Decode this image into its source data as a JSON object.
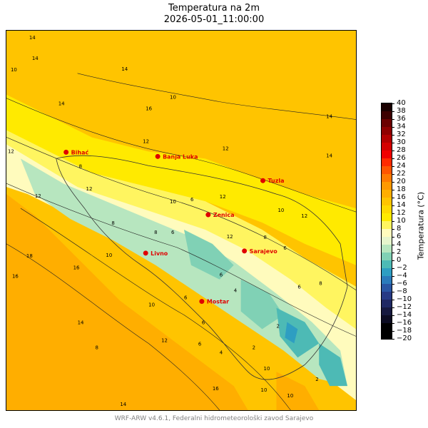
{
  "title": "Temperatura na 2m",
  "subtitle": "2026-05-01_11:00:00",
  "footer": "WRF-ARW v4.6.1, Federalni hidrometeorološki zavod Sarajevo",
  "colorbar": {
    "label": "Temperatura (°C)",
    "ticks": [
      "40",
      "38",
      "36",
      "34",
      "32",
      "30",
      "28",
      "26",
      "24",
      "22",
      "20",
      "18",
      "16",
      "14",
      "12",
      "10",
      "8",
      "6",
      "4",
      "2",
      "0",
      "−2",
      "−4",
      "−6",
      "−8",
      "−10",
      "−12",
      "−14",
      "−16",
      "−18",
      "−20"
    ],
    "colors": [
      "#1a0000",
      "#3d0000",
      "#6b0000",
      "#8f0000",
      "#b30000",
      "#d40000",
      "#f00000",
      "#ff2a00",
      "#ff5500",
      "#ff7a00",
      "#ff9900",
      "#ffae00",
      "#ffc400",
      "#ffd900",
      "#ffea00",
      "#fff560",
      "#fffbbd",
      "#e6f5cc",
      "#b7e6bf",
      "#80d1b5",
      "#4dbab5",
      "#2e9ec2",
      "#2b7bbb",
      "#2a56a3",
      "#273a85",
      "#1f2863",
      "#16193f",
      "#0c0c22",
      "#000000",
      "#000000"
    ]
  },
  "cities": [
    {
      "name": "Bihać"
    },
    {
      "name": "Banja Luka"
    },
    {
      "name": "Tuzla"
    },
    {
      "name": "Zenica"
    },
    {
      "name": "Sarajevo"
    },
    {
      "name": "Livno"
    },
    {
      "name": "Mostar"
    }
  ],
  "contour_labels": [
    "14",
    "14",
    "10",
    "14",
    "16",
    "10",
    "14",
    "12",
    "8",
    "12",
    "12",
    "12",
    "14",
    "12",
    "14",
    "10",
    "8",
    "8",
    "6",
    "6",
    "10",
    "12",
    "8",
    "6",
    "6",
    "12",
    "10",
    "18",
    "16",
    "16",
    "6",
    "4",
    "6",
    "2",
    "2",
    "12",
    "10",
    "8",
    "6",
    "4",
    "2",
    "10",
    "6",
    "10",
    "8",
    "14",
    "16",
    "14",
    "10",
    "12"
  ]
}
